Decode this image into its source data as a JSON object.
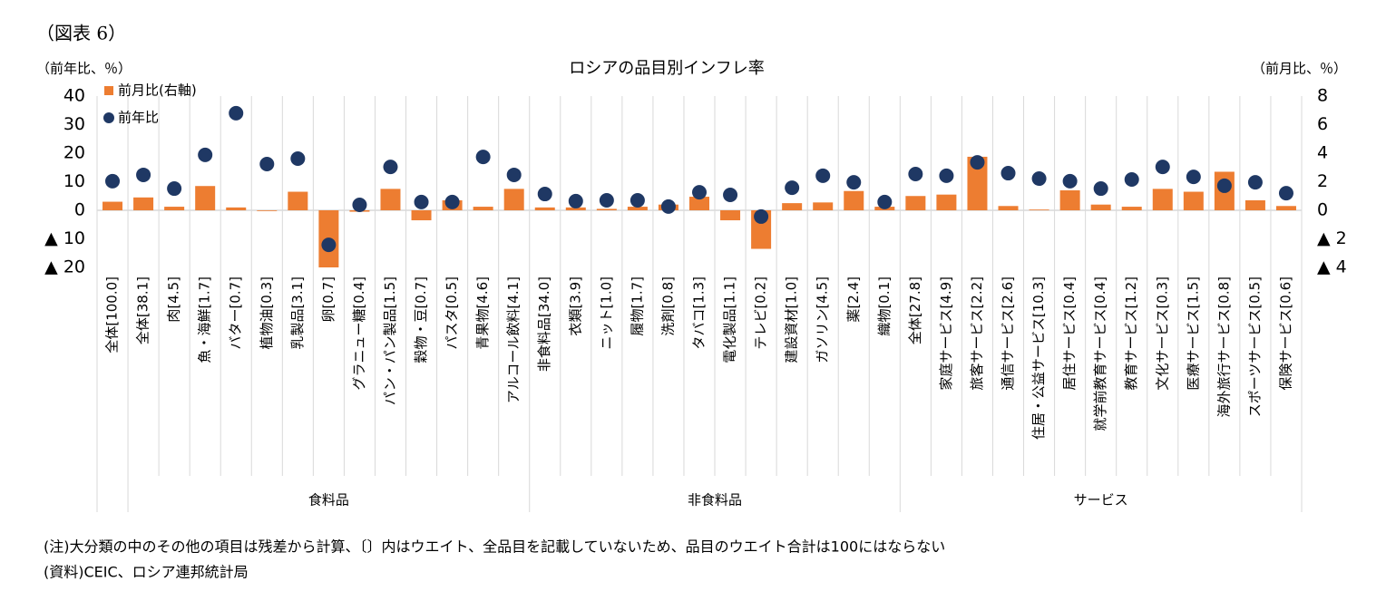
{
  "figure_label": "（図表 6）",
  "chart_data": {
    "type": "bar_dot",
    "title": "ロシアの品目別インフレ率",
    "y_axis_label": "（前年比、％）",
    "y2_axis_label": "（前月比、％）",
    "categories": [
      "全体[100.0]",
      "全体[38.1]",
      "肉[4.5]",
      "魚・海鮮[1.7]",
      "バター[0.7]",
      "植物油[0.3]",
      "乳製品[3.1]",
      "卵[0.7]",
      "グラニュー糖[0.4]",
      "パン・パン製品[1.5]",
      "穀物・豆[0.7]",
      "パスタ[0.5]",
      "青果物[4.6]",
      "アルコール飲料[4.1]",
      "非食料品[34.0]",
      "衣類[3.9]",
      "ニット[1.0]",
      "履物[1.7]",
      "洗剤[0.8]",
      "タバコ[1.3]",
      "電化製品[1.1]",
      "テレビ[0.2]",
      "建設資材[1.0]",
      "ガソリン[4.5]",
      "薬[2.4]",
      "織物[0.1]",
      "全体[27.8]",
      "家庭サービス[4.9]",
      "旅客サービス[2.2]",
      "通信サービス[2.6]",
      "住居・公益サービス[10.3]",
      "居住サービス[0.4]",
      "就学前教育サービス[0.4]",
      "教育サービス[1.2]",
      "文化サービス[0.3]",
      "医療サービス[1.5]",
      "海外旅行サービス[0.8]",
      "スポーツサービス[0.5]",
      "保険サービス[0.6]"
    ],
    "groups": [
      {
        "label": "食料品",
        "from": 1,
        "to": 13
      },
      {
        "label": "非食料品",
        "from": 14,
        "to": 25
      },
      {
        "label": "サービス",
        "from": 26,
        "to": 38
      }
    ],
    "series": [
      {
        "name": "前月比(右軸)",
        "type": "bar",
        "axis": "y2",
        "color": "#ed7d31",
        "values": [
          0.6,
          0.9,
          0.25,
          1.7,
          0.2,
          -0.05,
          1.3,
          -4,
          -0.1,
          1.5,
          -0.7,
          0.7,
          0.25,
          1.5,
          0.2,
          0.2,
          0.1,
          0.25,
          0.4,
          0.95,
          -0.7,
          -2.7,
          0.5,
          0.55,
          1.35,
          0.25,
          1.0,
          1.1,
          3.75,
          0.3,
          0.05,
          1.4,
          0.4,
          0.25,
          1.5,
          1.3,
          2.7,
          0.7,
          0.3
        ]
      },
      {
        "name": "前年比",
        "type": "dot",
        "axis": "y",
        "color": "#1f3864",
        "values": [
          10.2,
          12.4,
          7.6,
          19.4,
          34,
          16.2,
          18.1,
          -12.1,
          1.9,
          15.2,
          2.9,
          2.9,
          18.7,
          12.4,
          5.7,
          3.2,
          3.5,
          3.5,
          1.3,
          6.3,
          5.4,
          -2.2,
          7.9,
          12.1,
          9.8,
          2.9,
          12.7,
          12.1,
          16.8,
          13,
          11.1,
          10.2,
          7.6,
          10.8,
          15.2,
          11.7,
          8.6,
          9.8,
          6
        ]
      }
    ],
    "ylim": [
      -20,
      40
    ],
    "yticks": [
      40,
      30,
      20,
      10,
      0,
      {
        "value": -10,
        "label": "▲ 10"
      },
      {
        "value": -20,
        "label": "▲ 20"
      }
    ],
    "y2lim": [
      -4,
      8
    ],
    "y2ticks": [
      8,
      6,
      4,
      2,
      0,
      {
        "value": -2,
        "label": "▲ 2"
      },
      {
        "value": -4,
        "label": "▲ 4"
      }
    ],
    "notes": [
      "(注)大分類の中のその他の項目は残差から計算、〔〕内はウエイト、全品目を記載していないため、品目のウエイト合計は100にはならない",
      "(資料)CEIC、ロシア連邦統計局"
    ]
  }
}
